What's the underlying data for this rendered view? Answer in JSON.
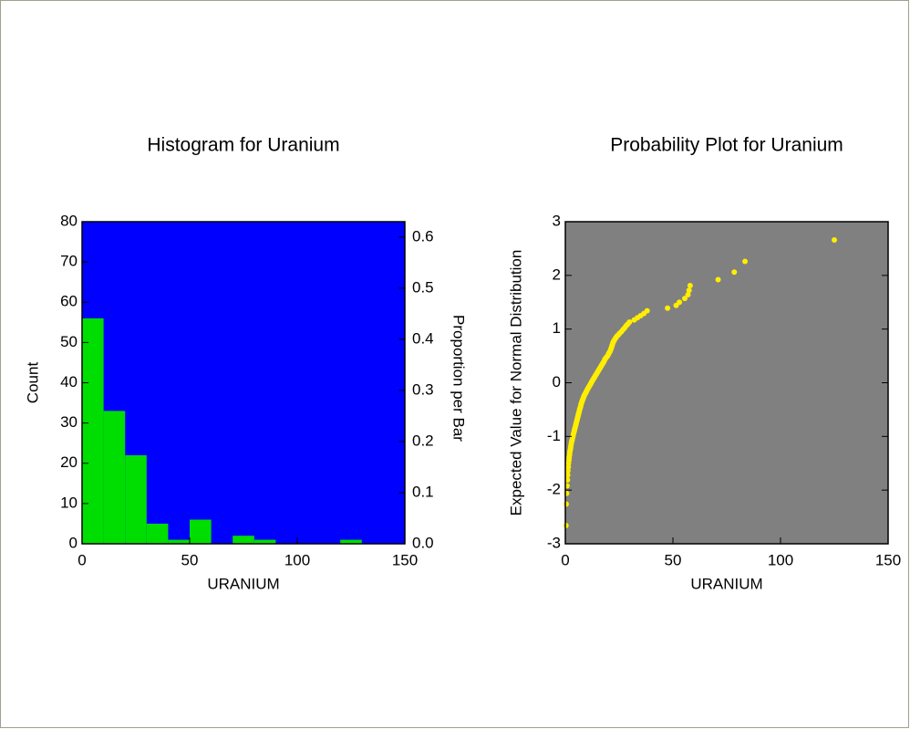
{
  "chart_data": [
    {
      "type": "histogram",
      "title": "Histogram for Uranium",
      "xlabel": "URANIUM",
      "ylabel": "Count",
      "y2label": "Proportion per Bar",
      "bins": [
        0,
        10,
        20,
        30,
        40,
        50,
        60,
        70,
        80,
        90,
        100,
        110,
        120,
        130,
        140,
        150
      ],
      "values": [
        56,
        33,
        22,
        5,
        1,
        6,
        0,
        2,
        1,
        0,
        0,
        0,
        1,
        0,
        0
      ],
      "color": "#00dd00",
      "background": "#0000ff",
      "xlim": [
        0,
        150
      ],
      "xticks": [
        0,
        50,
        100,
        150
      ],
      "ylim": [
        0,
        80
      ],
      "yticks": [
        0,
        10,
        20,
        30,
        40,
        50,
        60,
        70,
        80
      ],
      "y2lim": [
        0,
        0.63
      ],
      "y2ticks": [
        {
          "value": 0,
          "label": "0.0"
        },
        0.1,
        0.2,
        0.3,
        0.4,
        0.5,
        0.6
      ]
    },
    {
      "type": "scatter",
      "title": "Probability Plot for Uranium",
      "xlabel": "URANIUM",
      "ylabel": "Expected Value for Normal Distribution",
      "x": [
        0.3,
        0.4,
        0.6,
        0.8,
        1.0,
        1.1,
        1.2,
        1.4,
        1.5,
        1.7,
        1.8,
        2.0,
        2.1,
        2.3,
        2.5,
        2.6,
        2.8,
        3.0,
        3.2,
        3.4,
        3.6,
        3.8,
        4.0,
        4.2,
        4.3,
        4.5,
        4.7,
        4.9,
        5.0,
        5.2,
        5.4,
        5.5,
        5.7,
        5.8,
        6.0,
        6.1,
        6.3,
        6.4,
        6.6,
        6.7,
        6.9,
        7.0,
        7.2,
        7.3,
        7.5,
        7.7,
        7.8,
        8.0,
        8.2,
        8.4,
        8.6,
        8.8,
        9.0,
        9.3,
        9.6,
        9.8,
        10.1,
        10.3,
        10.6,
        10.9,
        11.2,
        11.5,
        11.8,
        12.0,
        12.3,
        12.6,
        12.9,
        13.2,
        13.5,
        13.8,
        14.1,
        14.4,
        14.7,
        15.0,
        15.3,
        15.6,
        15.9,
        16.2,
        16.5,
        16.8,
        17.1,
        17.4,
        17.7,
        18.0,
        18.3,
        18.6,
        19.0,
        19.4,
        19.8,
        20.1,
        20.4,
        20.7,
        21.0,
        21.2,
        21.4,
        21.6,
        21.8,
        22.0,
        22.3,
        22.6,
        23.0,
        23.5,
        24.0,
        24.6,
        25.2,
        26.0,
        26.8,
        27.5,
        28.2,
        29.0,
        29.8,
        32.0,
        33.5,
        35.0,
        36.5,
        38.0,
        47.5,
        51.5,
        53.0,
        55.5,
        57.0,
        57.5,
        58.0,
        71,
        78.5,
        83.5,
        125
      ],
      "values": [
        -2.66,
        -2.26,
        -2.06,
        -1.92,
        -1.81,
        -1.72,
        -1.64,
        -1.57,
        -1.5,
        -1.44,
        -1.39,
        -1.34,
        -1.29,
        -1.25,
        -1.21,
        -1.17,
        -1.13,
        -1.09,
        -1.06,
        -1.02,
        -0.99,
        -0.95,
        -0.92,
        -0.89,
        -0.87,
        -0.84,
        -0.81,
        -0.78,
        -0.76,
        -0.73,
        -0.7,
        -0.68,
        -0.65,
        -0.63,
        -0.61,
        -0.58,
        -0.56,
        -0.54,
        -0.51,
        -0.49,
        -0.47,
        -0.45,
        -0.43,
        -0.4,
        -0.38,
        -0.36,
        -0.34,
        -0.32,
        -0.3,
        -0.28,
        -0.26,
        -0.24,
        -0.22,
        -0.2,
        -0.18,
        -0.16,
        -0.14,
        -0.12,
        -0.1,
        -0.08,
        -0.06,
        -0.04,
        -0.02,
        0,
        0.02,
        0.04,
        0.06,
        0.08,
        0.1,
        0.12,
        0.14,
        0.16,
        0.18,
        0.2,
        0.22,
        0.24,
        0.26,
        0.28,
        0.3,
        0.32,
        0.34,
        0.36,
        0.38,
        0.4,
        0.43,
        0.45,
        0.47,
        0.49,
        0.51,
        0.54,
        0.56,
        0.58,
        0.61,
        0.63,
        0.65,
        0.68,
        0.7,
        0.73,
        0.76,
        0.78,
        0.81,
        0.84,
        0.87,
        0.89,
        0.92,
        0.95,
        0.99,
        1.02,
        1.06,
        1.09,
        1.13,
        1.17,
        1.21,
        1.25,
        1.29,
        1.34,
        1.39,
        1.44,
        1.5,
        1.57,
        1.64,
        1.72,
        1.81,
        1.92,
        2.06,
        2.26,
        2.66
      ],
      "color": "#ffee00",
      "background": "#808080",
      "xlim": [
        0,
        150
      ],
      "xticks": [
        0,
        50,
        100,
        150
      ],
      "ylim": [
        -3,
        3
      ],
      "yticks": [
        -3,
        -2,
        -1,
        0,
        1,
        2,
        3
      ]
    }
  ]
}
